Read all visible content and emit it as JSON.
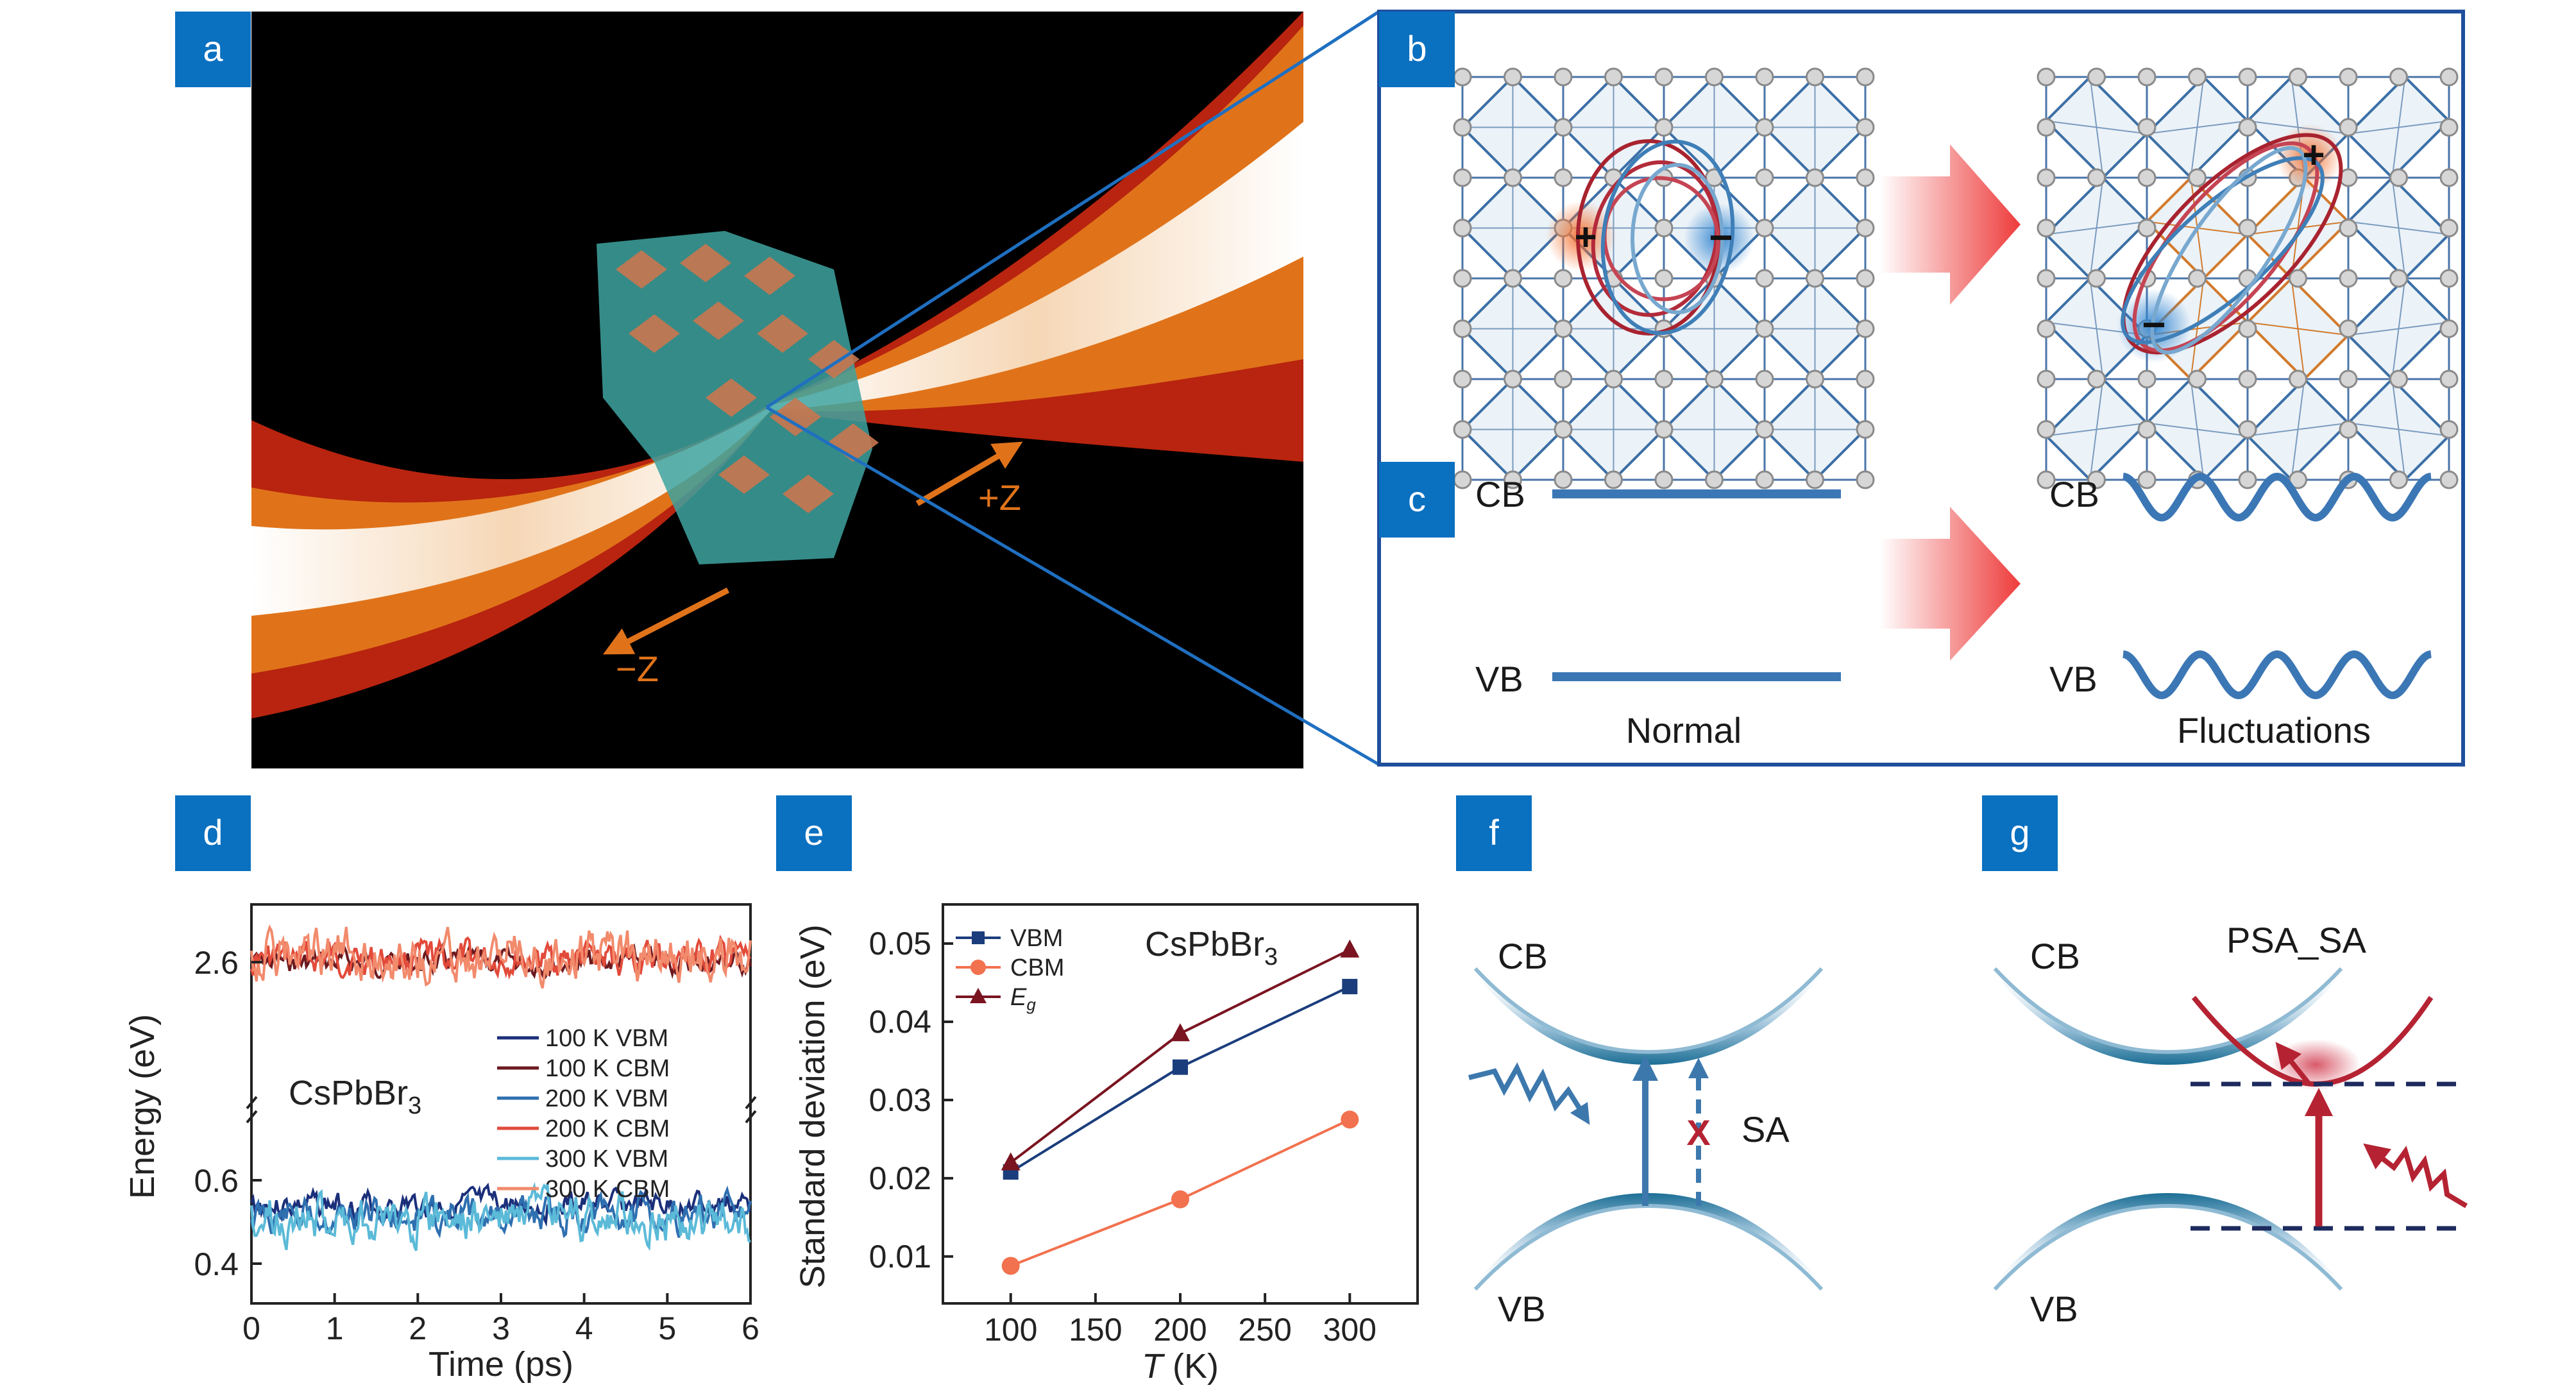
{
  "colors": {
    "panel_label_bg": "#0a70c0",
    "box_border": "#1f4f9c",
    "band_blue": "#2e6da4",
    "laser_dark_red": "#b8240f",
    "laser_orange": "#e0731a",
    "hole_color": "#ee7a38",
    "electron_color": "#2d82cf",
    "vbm_color": "#1b3d7c",
    "cbm_color": "#f2714e",
    "eg_color": "#7a1420",
    "psa_red": "#b52333"
  },
  "panel_labels": {
    "a": "a",
    "b": "b",
    "c": "c",
    "d": "d",
    "e": "e",
    "f": "f",
    "g": "g"
  },
  "panel_a": {
    "plus_z": "+Z",
    "minus_z": "−Z"
  },
  "panel_b": {
    "plus_sign": "+",
    "minus_sign": "−"
  },
  "panel_c": {
    "cb_label": "CB",
    "vb_label": "VB",
    "normal_label": "Normal",
    "fluct_label": "Fluctuations"
  },
  "panel_d": {
    "ylabel": "Energy (eV)",
    "xlabel": "Time (ps)",
    "material": "CsPbBr",
    "subscript": "3",
    "upper_tick": "2.6",
    "lower_ticks": [
      "0.6",
      "0.4"
    ],
    "xticks": [
      "0",
      "1",
      "2",
      "3",
      "4",
      "5",
      "6"
    ],
    "legend": [
      "100 K VBM",
      "100 K CBM",
      "200 K VBM",
      "200 K CBM",
      "300 K VBM",
      "300 K CBM"
    ]
  },
  "panel_f": {
    "cb_label": "CB",
    "vb_label": "VB",
    "sa_label": "SA",
    "cross": "X"
  },
  "panel_g": {
    "cb_label": "CB",
    "vb_label": "VB",
    "title": "PSA_SA"
  },
  "chart_data": {
    "type": "line",
    "title": "CsPbBr3",
    "material": "CsPbBr",
    "subscript": "3",
    "xlabel_italic": "T",
    "xlabel_rest": " (K)",
    "ylabel": "Standard deviation (eV)",
    "xlim": [
      60,
      340
    ],
    "ylim": [
      0.004,
      0.055
    ],
    "xticks": [
      100,
      150,
      200,
      250,
      300
    ],
    "yticks": [
      0.01,
      0.02,
      0.03,
      0.04,
      0.05
    ],
    "xtick_labels": [
      "100",
      "150",
      "200",
      "250",
      "300"
    ],
    "ytick_labels": [
      "0.01",
      "0.02",
      "0.03",
      "0.04",
      "0.05"
    ],
    "x": [
      100,
      200,
      300
    ],
    "series": [
      {
        "name": "VBM",
        "sub": "",
        "marker": "square",
        "color": "#1b3d7c",
        "values": [
          0.0208,
          0.0342,
          0.0445
        ]
      },
      {
        "name": "CBM",
        "sub": "",
        "marker": "circle",
        "color": "#f2714e",
        "values": [
          0.0088,
          0.0173,
          0.0275
        ]
      },
      {
        "name": "E",
        "sub": "g",
        "marker": "triangle",
        "color": "#7a1420",
        "values": [
          0.022,
          0.0385,
          0.0492
        ]
      }
    ]
  }
}
